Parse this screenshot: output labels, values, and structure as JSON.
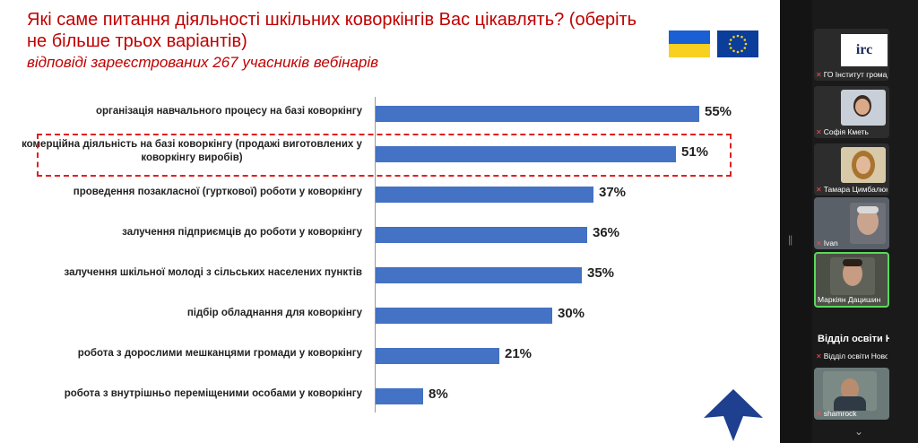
{
  "slide": {
    "title": "Які саме питання діяльності шкільних коворкінгів Вас цікавлять? (оберіть не більше трьох варіантів)",
    "subtitle": "відповіді зареєстрованих 267 учасників вебінарів",
    "colors": {
      "title": "#c00000",
      "bar": "#4472c4",
      "highlight": "#e02020"
    }
  },
  "chart_data": {
    "type": "bar",
    "orientation": "horizontal",
    "categories": [
      "організація навчального процесу на базі коворкінгу",
      "комерційна діяльність на базі коворкінгу (продажі виготовлених у коворкінгу виробів)",
      "проведення позакласної (гурткової) роботи у коворкінгу",
      "залучення підприємців до роботи у коворкінгу",
      "залучення шкільної молоді з сільських населених пунктів",
      "підбір обладнання для коворкінгу",
      "робота з дорослими мешканцями громади у коворкінгу",
      "робота з внутрішньо переміщеними особами у коворкінгу"
    ],
    "values": [
      55,
      51,
      37,
      36,
      35,
      30,
      21,
      8
    ],
    "value_labels": [
      "55%",
      "51%",
      "37%",
      "36%",
      "35%",
      "30%",
      "21%",
      "8%"
    ],
    "highlighted_category_index": 1,
    "xlim": [
      0,
      100
    ]
  },
  "call_panel": {
    "participants": [
      {
        "name": "ГО Інститут громадян...",
        "muted": true,
        "kind": "logo",
        "logo_text": "irc"
      },
      {
        "name": "Софія Кметь",
        "muted": true,
        "kind": "video"
      },
      {
        "name": "Тамара Цимбалюк",
        "muted": true,
        "kind": "video"
      },
      {
        "name": "Ivan",
        "muted": true,
        "kind": "video"
      },
      {
        "name": "Маркіян Дацишин",
        "muted": false,
        "kind": "video",
        "active_speaker": true
      },
      {
        "name": "Відділ освіти Новосло...",
        "muted": true,
        "kind": "name",
        "display_text": "Відділ освіти Н..."
      },
      {
        "name": "shamrock",
        "muted": true,
        "kind": "video"
      }
    ]
  }
}
